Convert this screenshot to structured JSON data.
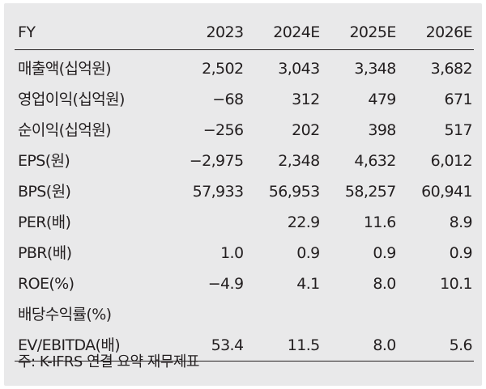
{
  "table": {
    "headers": [
      "FY",
      "2023",
      "2024E",
      "2025E",
      "2026E"
    ],
    "rows": [
      {
        "label": "매출액(십억원)",
        "values": [
          "2,502",
          "3,043",
          "3,348",
          "3,682"
        ]
      },
      {
        "label": "영업이익(십억원)",
        "values": [
          "−68",
          "312",
          "479",
          "671"
        ]
      },
      {
        "label": "순이익(십억원)",
        "values": [
          "−256",
          "202",
          "398",
          "517"
        ]
      },
      {
        "label": "EPS(원)",
        "values": [
          "−2,975",
          "2,348",
          "4,632",
          "6,012"
        ]
      },
      {
        "label": "BPS(원)",
        "values": [
          "57,933",
          "56,953",
          "58,257",
          "60,941"
        ]
      },
      {
        "label": "PER(배)",
        "values": [
          "",
          "22.9",
          "11.6",
          "8.9"
        ]
      },
      {
        "label": "PBR(배)",
        "values": [
          "1.0",
          "0.9",
          "0.9",
          "0.9"
        ]
      },
      {
        "label": "ROE(%)",
        "values": [
          "−4.9",
          "4.1",
          "8.0",
          "10.1"
        ]
      },
      {
        "label": "배당수익률(%)",
        "values": [
          "",
          "",
          "",
          ""
        ]
      },
      {
        "label": "EV/EBITDA(배)",
        "values": [
          "53.4",
          "11.5",
          "8.0",
          "5.6"
        ]
      }
    ]
  },
  "footnote": "주: K-IFRS 연결 요약 재무제표"
}
